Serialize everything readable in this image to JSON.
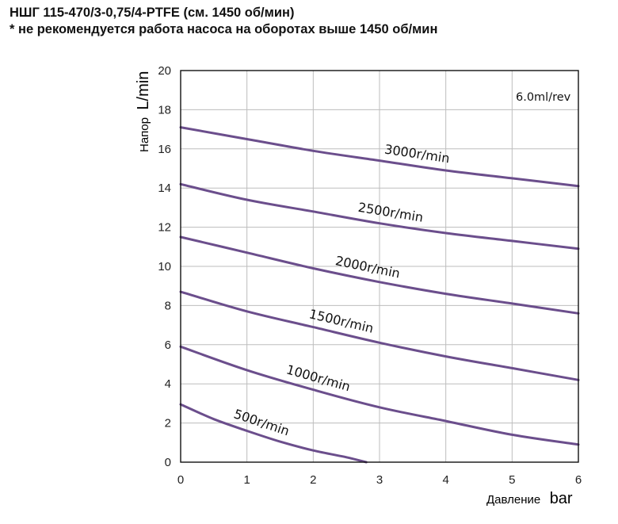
{
  "header": {
    "title": "НШГ 115-470/3-0,75/4-PTFE (см. 1450 об/мин)",
    "note": "* не рекомендуется работа насоса на оборотах выше 1450 об/мин"
  },
  "chart_data": {
    "type": "line",
    "title": "НШГ 115-470/3-0,75/4-PTFE (см. 1450 об/мин)",
    "xlabel_prefix": "Давление",
    "xlabel_unit": "bar",
    "ylabel_prefix": "Напор",
    "ylabel_unit": "L/min",
    "annotation": "6.0ml/rev",
    "xlim": [
      0,
      6
    ],
    "ylim": [
      0,
      20
    ],
    "x_ticks": [
      0,
      1,
      2,
      3,
      4,
      5,
      6
    ],
    "y_ticks": [
      0,
      2,
      4,
      6,
      8,
      10,
      12,
      14,
      16,
      18,
      20
    ],
    "grid": true,
    "line_color": "#6b4e8c",
    "series": [
      {
        "name": "3000r/min",
        "x": [
          0,
          1,
          2,
          3,
          4,
          5,
          6
        ],
        "y": [
          17.1,
          16.5,
          15.9,
          15.4,
          14.9,
          14.5,
          14.1
        ]
      },
      {
        "name": "2500r/min",
        "x": [
          0,
          1,
          2,
          3,
          4,
          5,
          6
        ],
        "y": [
          14.2,
          13.4,
          12.8,
          12.2,
          11.7,
          11.3,
          10.9
        ]
      },
      {
        "name": "2000r/min",
        "x": [
          0,
          1,
          2,
          3,
          4,
          5,
          6
        ],
        "y": [
          11.5,
          10.7,
          9.9,
          9.2,
          8.6,
          8.1,
          7.6
        ]
      },
      {
        "name": "1500r/min",
        "x": [
          0,
          1,
          2,
          3,
          4,
          5,
          6
        ],
        "y": [
          8.7,
          7.7,
          6.9,
          6.1,
          5.4,
          4.8,
          4.2
        ]
      },
      {
        "name": "1000r/min",
        "x": [
          0,
          1,
          2,
          3,
          4,
          5,
          6
        ],
        "y": [
          5.9,
          4.7,
          3.7,
          2.8,
          2.1,
          1.4,
          0.9
        ]
      },
      {
        "name": "500r/min",
        "x": [
          0,
          0.5,
          1,
          1.5,
          2,
          2.5,
          2.8
        ],
        "y": [
          2.95,
          2.2,
          1.6,
          1.05,
          0.6,
          0.25,
          0.0
        ]
      }
    ]
  }
}
